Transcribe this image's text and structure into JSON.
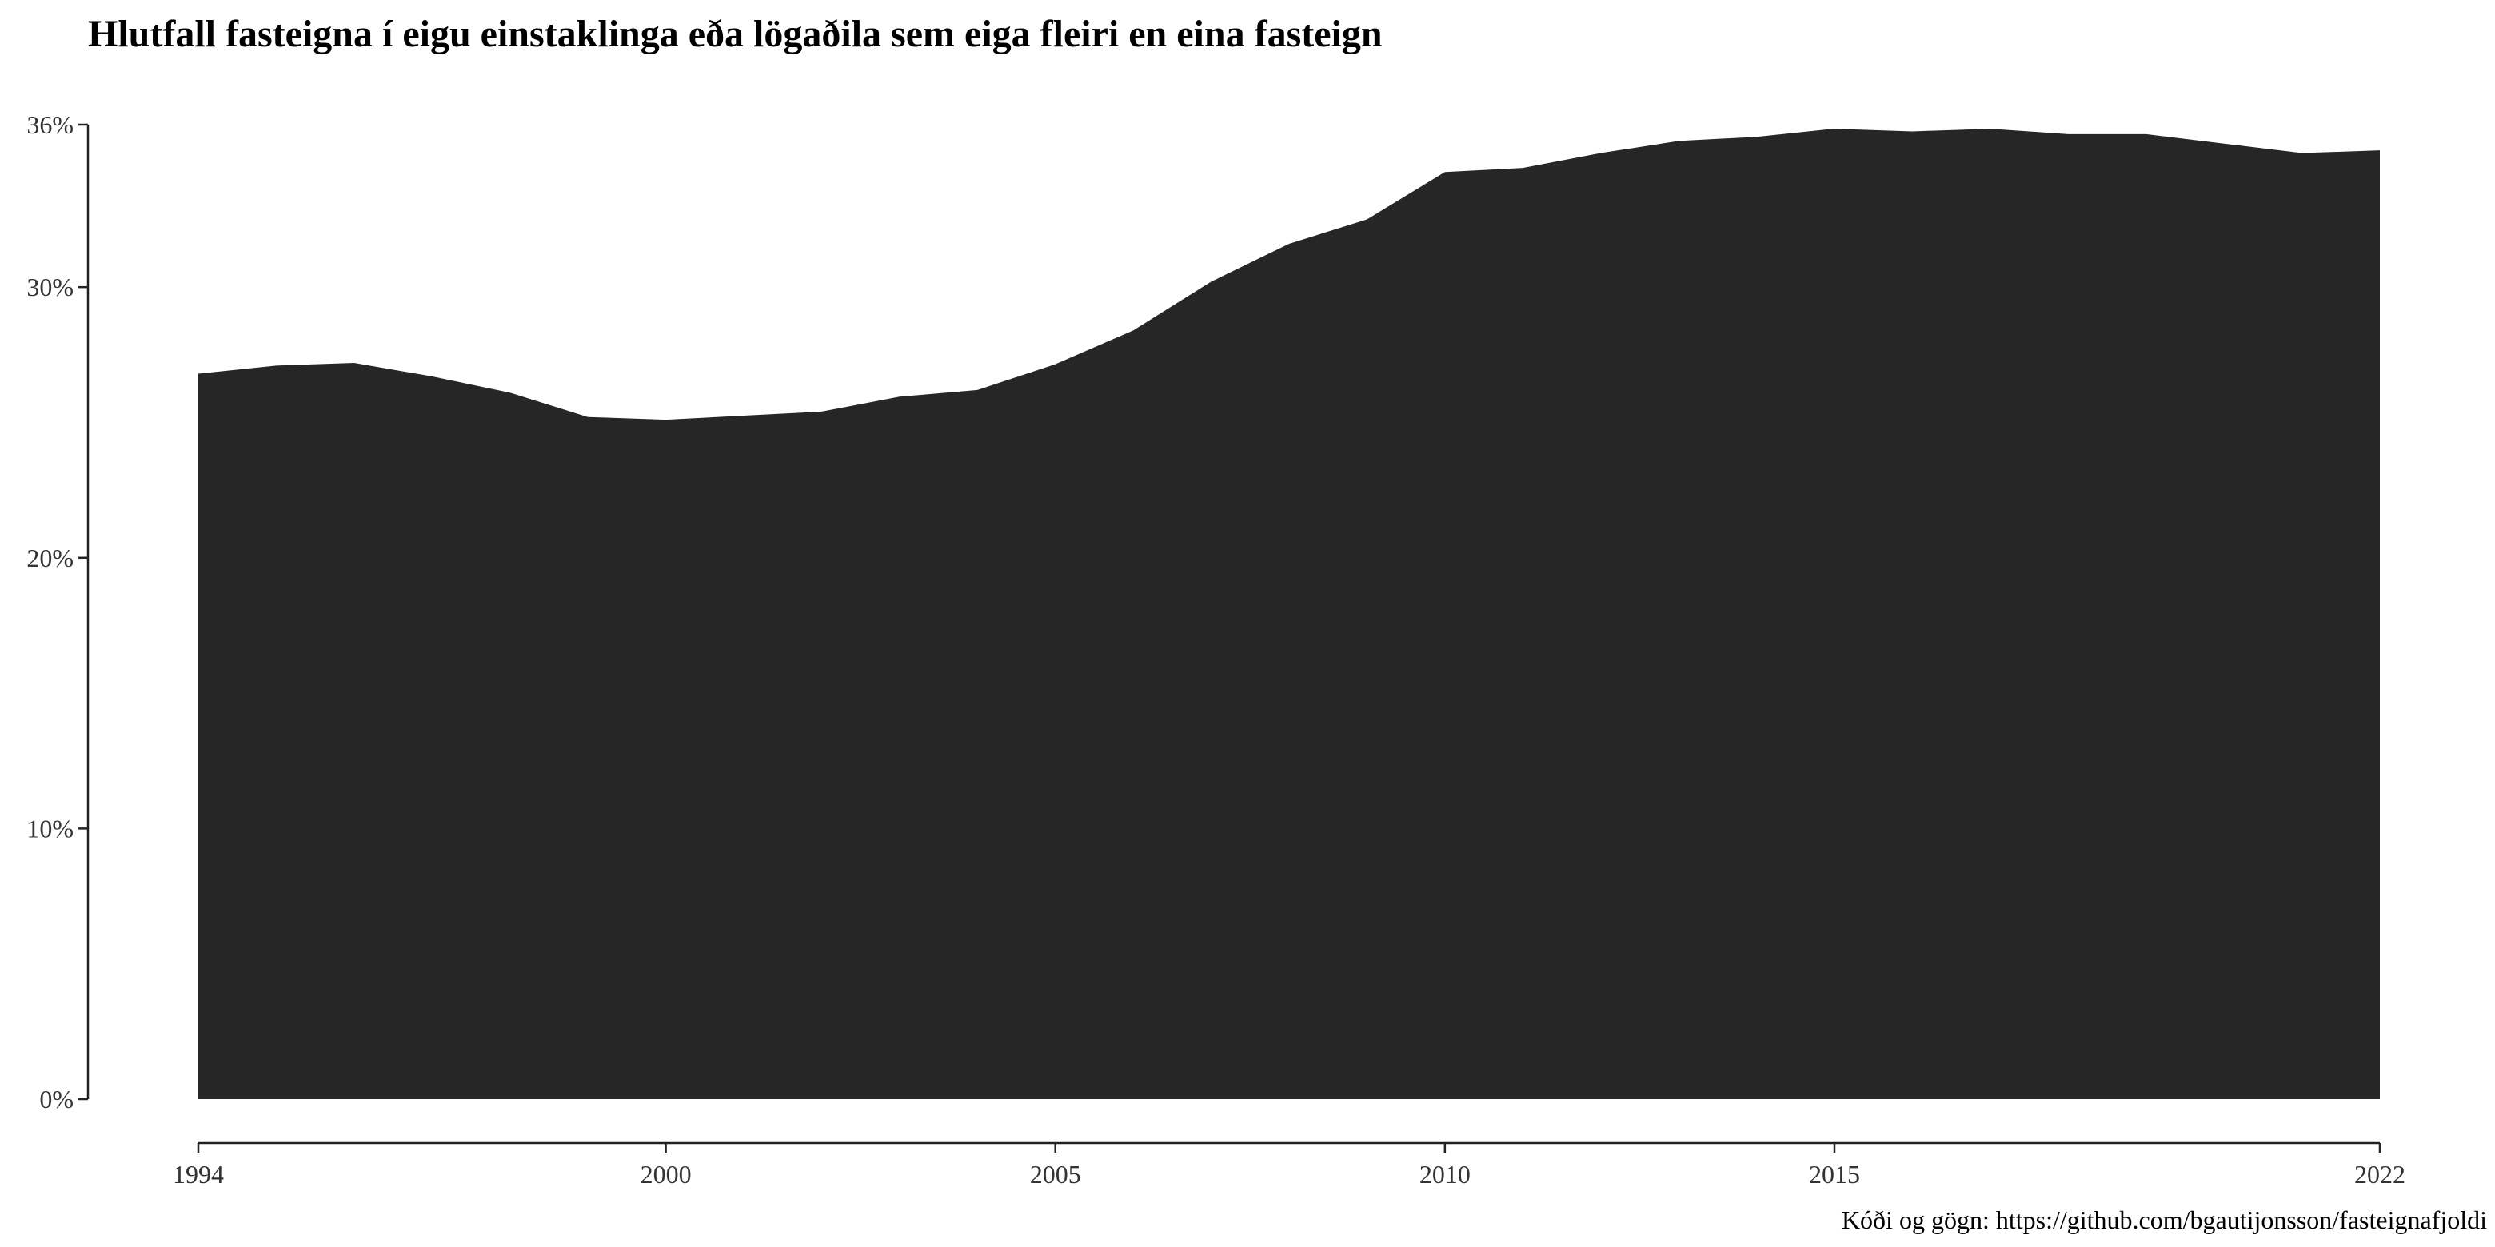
{
  "chart_data": {
    "type": "area",
    "title": "Hlutfall fasteigna í eigu einstaklinga eða lögaðila sem eiga fleiri en eina fasteign",
    "subtitle": "",
    "xlabel": "",
    "ylabel": "",
    "caption": "Kóði og gögn: https://github.com/bgautijonsson/fasteignafjoldi",
    "x": [
      1994,
      1995,
      1996,
      1997,
      1998,
      1999,
      2000,
      2001,
      2002,
      2003,
      2004,
      2005,
      2006,
      2007,
      2008,
      2009,
      2010,
      2011,
      2012,
      2013,
      2014,
      2015,
      2016,
      2017,
      2018,
      2019,
      2020,
      2021,
      2022
    ],
    "series": [
      {
        "values": [
          26.8,
          27.1,
          27.2,
          26.7,
          26.1,
          25.2,
          25.1,
          25.25,
          25.4,
          25.95,
          26.2,
          27.15,
          28.4,
          30.2,
          31.6,
          32.5,
          34.25,
          34.4,
          34.95,
          35.4,
          35.55,
          35.85,
          35.75,
          35.85,
          35.65,
          35.65,
          35.3,
          34.95,
          35.05
        ]
      }
    ],
    "fill_color": "#262626",
    "xlim": [
      1994,
      2022
    ],
    "ylim": [
      0,
      36
    ],
    "x_ticks": [
      1994,
      2000,
      2005,
      2010,
      2015,
      2022
    ],
    "y_ticks": [
      0,
      10,
      20,
      30,
      36
    ],
    "y_tick_labels": [
      "0%",
      "10%",
      "20%",
      "30%",
      "36%"
    ],
    "grid": false,
    "legend": "none"
  }
}
